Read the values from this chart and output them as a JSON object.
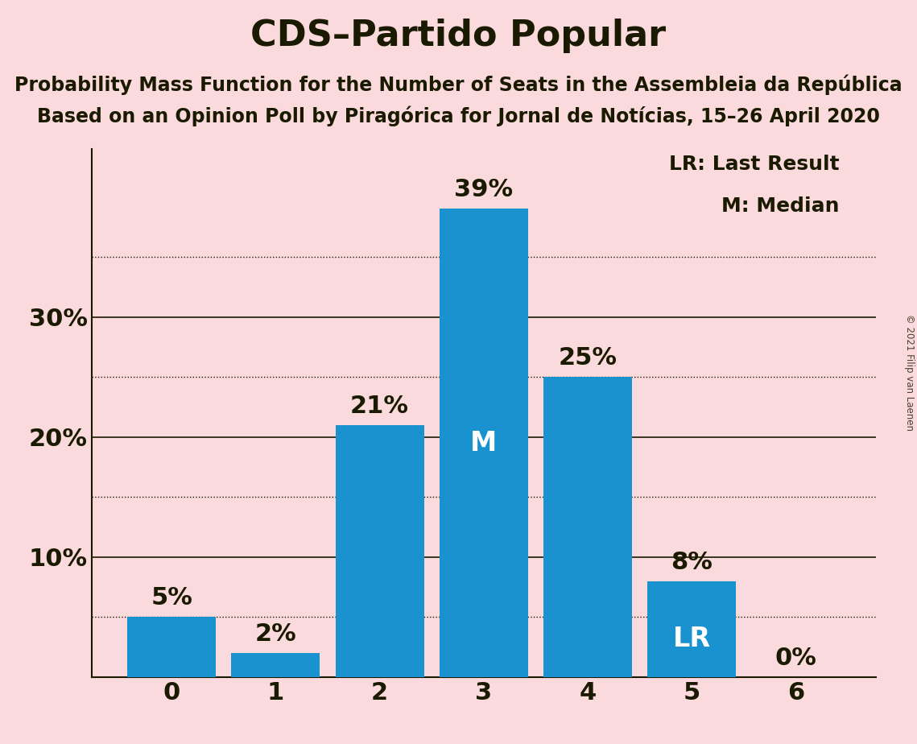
{
  "title": "CDS–Partido Popular",
  "subtitle1": "Probability Mass Function for the Number of Seats in the Assembleia da República",
  "subtitle2": "Based on an Opinion Poll by Piragórica for Jornal de Notícias, 15–26 April 2020",
  "copyright": "© 2021 Filip van Laenen",
  "categories": [
    0,
    1,
    2,
    3,
    4,
    5,
    6
  ],
  "values": [
    5,
    2,
    21,
    39,
    25,
    8,
    0
  ],
  "bar_color": "#1A92D0",
  "background_color": "#FADADD",
  "text_color": "#1A1A00",
  "label_color_dark": "#1A1A00",
  "label_color_white": "#FFFFFF",
  "median_bar": 3,
  "lr_bar": 5,
  "yticks": [
    0,
    10,
    20,
    30
  ],
  "ytick_labels": [
    "",
    "10%",
    "20%",
    "30%"
  ],
  "extra_gridlines": [
    5,
    15,
    25,
    35
  ],
  "ylim": [
    0,
    44
  ],
  "legend_text1": "LR: Last Result",
  "legend_text2": "M: Median",
  "title_fontsize": 32,
  "subtitle_fontsize": 17,
  "ytick_fontsize": 22,
  "xtick_fontsize": 22,
  "bar_label_fontsize": 22,
  "legend_fontsize": 18,
  "annotation_fontsize": 24
}
